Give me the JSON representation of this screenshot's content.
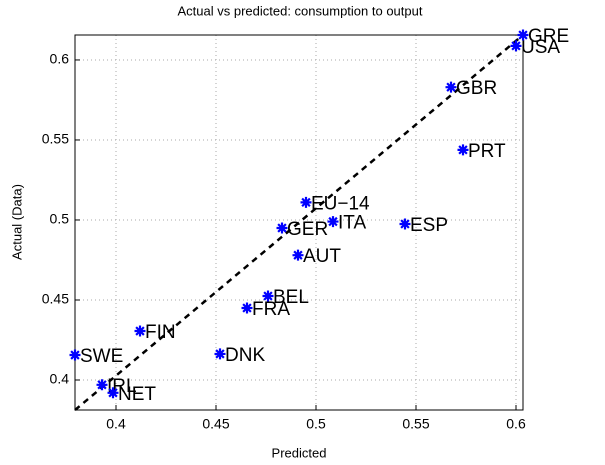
{
  "chart_data": {
    "type": "scatter",
    "title": "Actual vs predicted: consumption to output",
    "x_label": "Predicted",
    "y_label": "Actual (Data)",
    "labels": [
      "SWE",
      "IRL",
      "NET",
      "FIN",
      "DNK",
      "FRA",
      "BEL",
      "AUT",
      "GER",
      "EU−14",
      "ITA",
      "ESP",
      "PRT",
      "GBR",
      "USA",
      "GRE"
    ],
    "x": [
      0.3795,
      0.393,
      0.3985,
      0.412,
      0.452,
      0.4655,
      0.476,
      0.491,
      0.483,
      0.495,
      0.5085,
      0.5445,
      0.5735,
      0.5675,
      0.6,
      0.6035
    ],
    "y": [
      0.4156,
      0.397,
      0.392,
      0.4306,
      0.4163,
      0.445,
      0.4525,
      0.478,
      0.495,
      0.511,
      0.499,
      0.4975,
      0.5438,
      0.583,
      0.6088,
      0.6156
    ],
    "color": "#0000ff",
    "xlim": [
      0.3795,
      0.6035
    ],
    "ylim": [
      0.38125,
      0.6156
    ],
    "xticks": [
      0.4,
      0.45,
      0.5,
      0.55,
      0.6
    ],
    "yticks": [
      0.4,
      0.45,
      0.5,
      0.55,
      0.6
    ],
    "grid": true
  }
}
